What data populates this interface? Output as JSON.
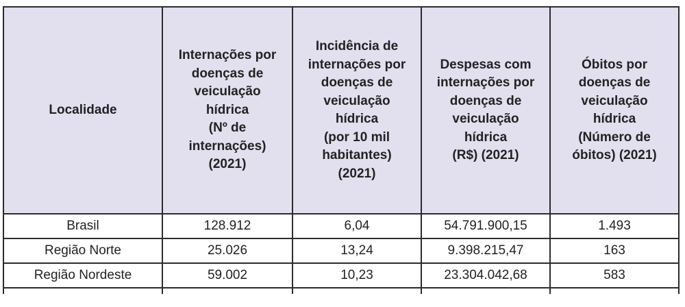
{
  "table": {
    "headers": [
      [
        "Localidade"
      ],
      [
        "Internações por",
        "doenças de",
        "veiculação",
        "hídrica",
        "(Nº de",
        "internações)",
        "(2021)"
      ],
      [
        "Incidência de",
        "internações por",
        "doenças de",
        "veiculação",
        "hídrica",
        "(por 10 mil",
        "habitantes)",
        "(2021)"
      ],
      [
        "Despesas com",
        "internações por",
        "doenças de",
        "veiculação",
        "hídrica",
        "(R$)  (2021)"
      ],
      [
        "Óbitos por",
        "doenças de",
        "veiculação",
        "hídrica",
        "(Número de",
        "óbitos)  (2021)"
      ]
    ],
    "rows": [
      [
        "Brasil",
        "128.912",
        "6,04",
        "54.791.900,15",
        "1.493"
      ],
      [
        "Região Norte",
        "25.026",
        "13,24",
        "9.398.215,47",
        "163"
      ],
      [
        "Região Nordeste",
        "59.002",
        "10,23",
        "23.304.042,68",
        "583"
      ]
    ]
  }
}
